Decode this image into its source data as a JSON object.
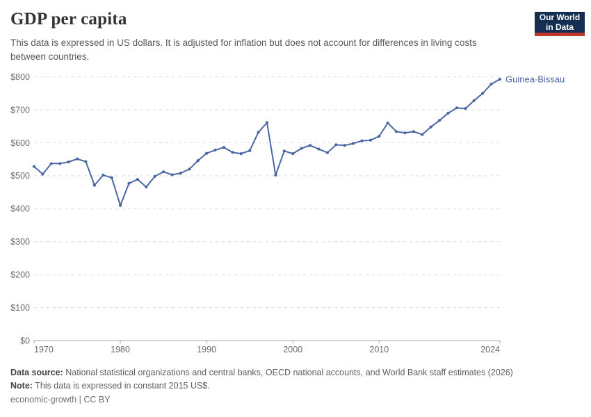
{
  "header": {
    "title": "GDP per capita",
    "subtitle": "This data is expressed in US dollars. It is adjusted for inflation but does not account for differences in living costs between countries.",
    "logo": {
      "line1": "Our World",
      "line2": "in Data"
    }
  },
  "chart_data": {
    "type": "line",
    "title": "GDP per capita",
    "series": [
      {
        "name": "Guinea-Bissau",
        "values": [
          528,
          505,
          537,
          537,
          542,
          551,
          543,
          471,
          502,
          494,
          410,
          477,
          489,
          466,
          498,
          512,
          503,
          508,
          520,
          546,
          568,
          578,
          586,
          571,
          567,
          576,
          632,
          661,
          502,
          575,
          567,
          583,
          592,
          581,
          570,
          594,
          592,
          598,
          606,
          608,
          620,
          660,
          634,
          630,
          634,
          625,
          648,
          668,
          690,
          706,
          704,
          728,
          750,
          778,
          793
        ]
      }
    ],
    "x": [
      1970,
      1971,
      1972,
      1973,
      1974,
      1975,
      1976,
      1977,
      1978,
      1979,
      1980,
      1981,
      1982,
      1983,
      1984,
      1985,
      1986,
      1987,
      1988,
      1989,
      1990,
      1991,
      1992,
      1993,
      1994,
      1995,
      1996,
      1997,
      1998,
      1999,
      2000,
      2001,
      2002,
      2003,
      2004,
      2005,
      2006,
      2007,
      2008,
      2009,
      2010,
      2011,
      2012,
      2013,
      2014,
      2015,
      2016,
      2017,
      2018,
      2019,
      2020,
      2021,
      2022,
      2023,
      2024
    ],
    "xlabel": "",
    "ylabel": "",
    "ylim": [
      0,
      800
    ],
    "ytick_step": 100,
    "ytick_prefix": "$",
    "xticks": [
      1970,
      1980,
      1990,
      2000,
      2010,
      2024
    ],
    "grid": true,
    "legend_position": "end-of-line",
    "end_label": "Guinea-Bissau"
  },
  "colors": {
    "line": "#4A67A3",
    "grid": "#dadada",
    "axis": "#a3a3a3",
    "tick_label": "#6b6b6b",
    "logo_bg": "#142F52",
    "logo_accent": "#C0392B"
  },
  "footer": {
    "data_source_label": "Data source:",
    "data_source": "National statistical organizations and central banks, OECD national accounts, and World Bank staff estimates (2026)",
    "note_label": "Note:",
    "note": "This data is expressed in constant 2015 US$.",
    "license": "economic-growth | CC BY"
  }
}
